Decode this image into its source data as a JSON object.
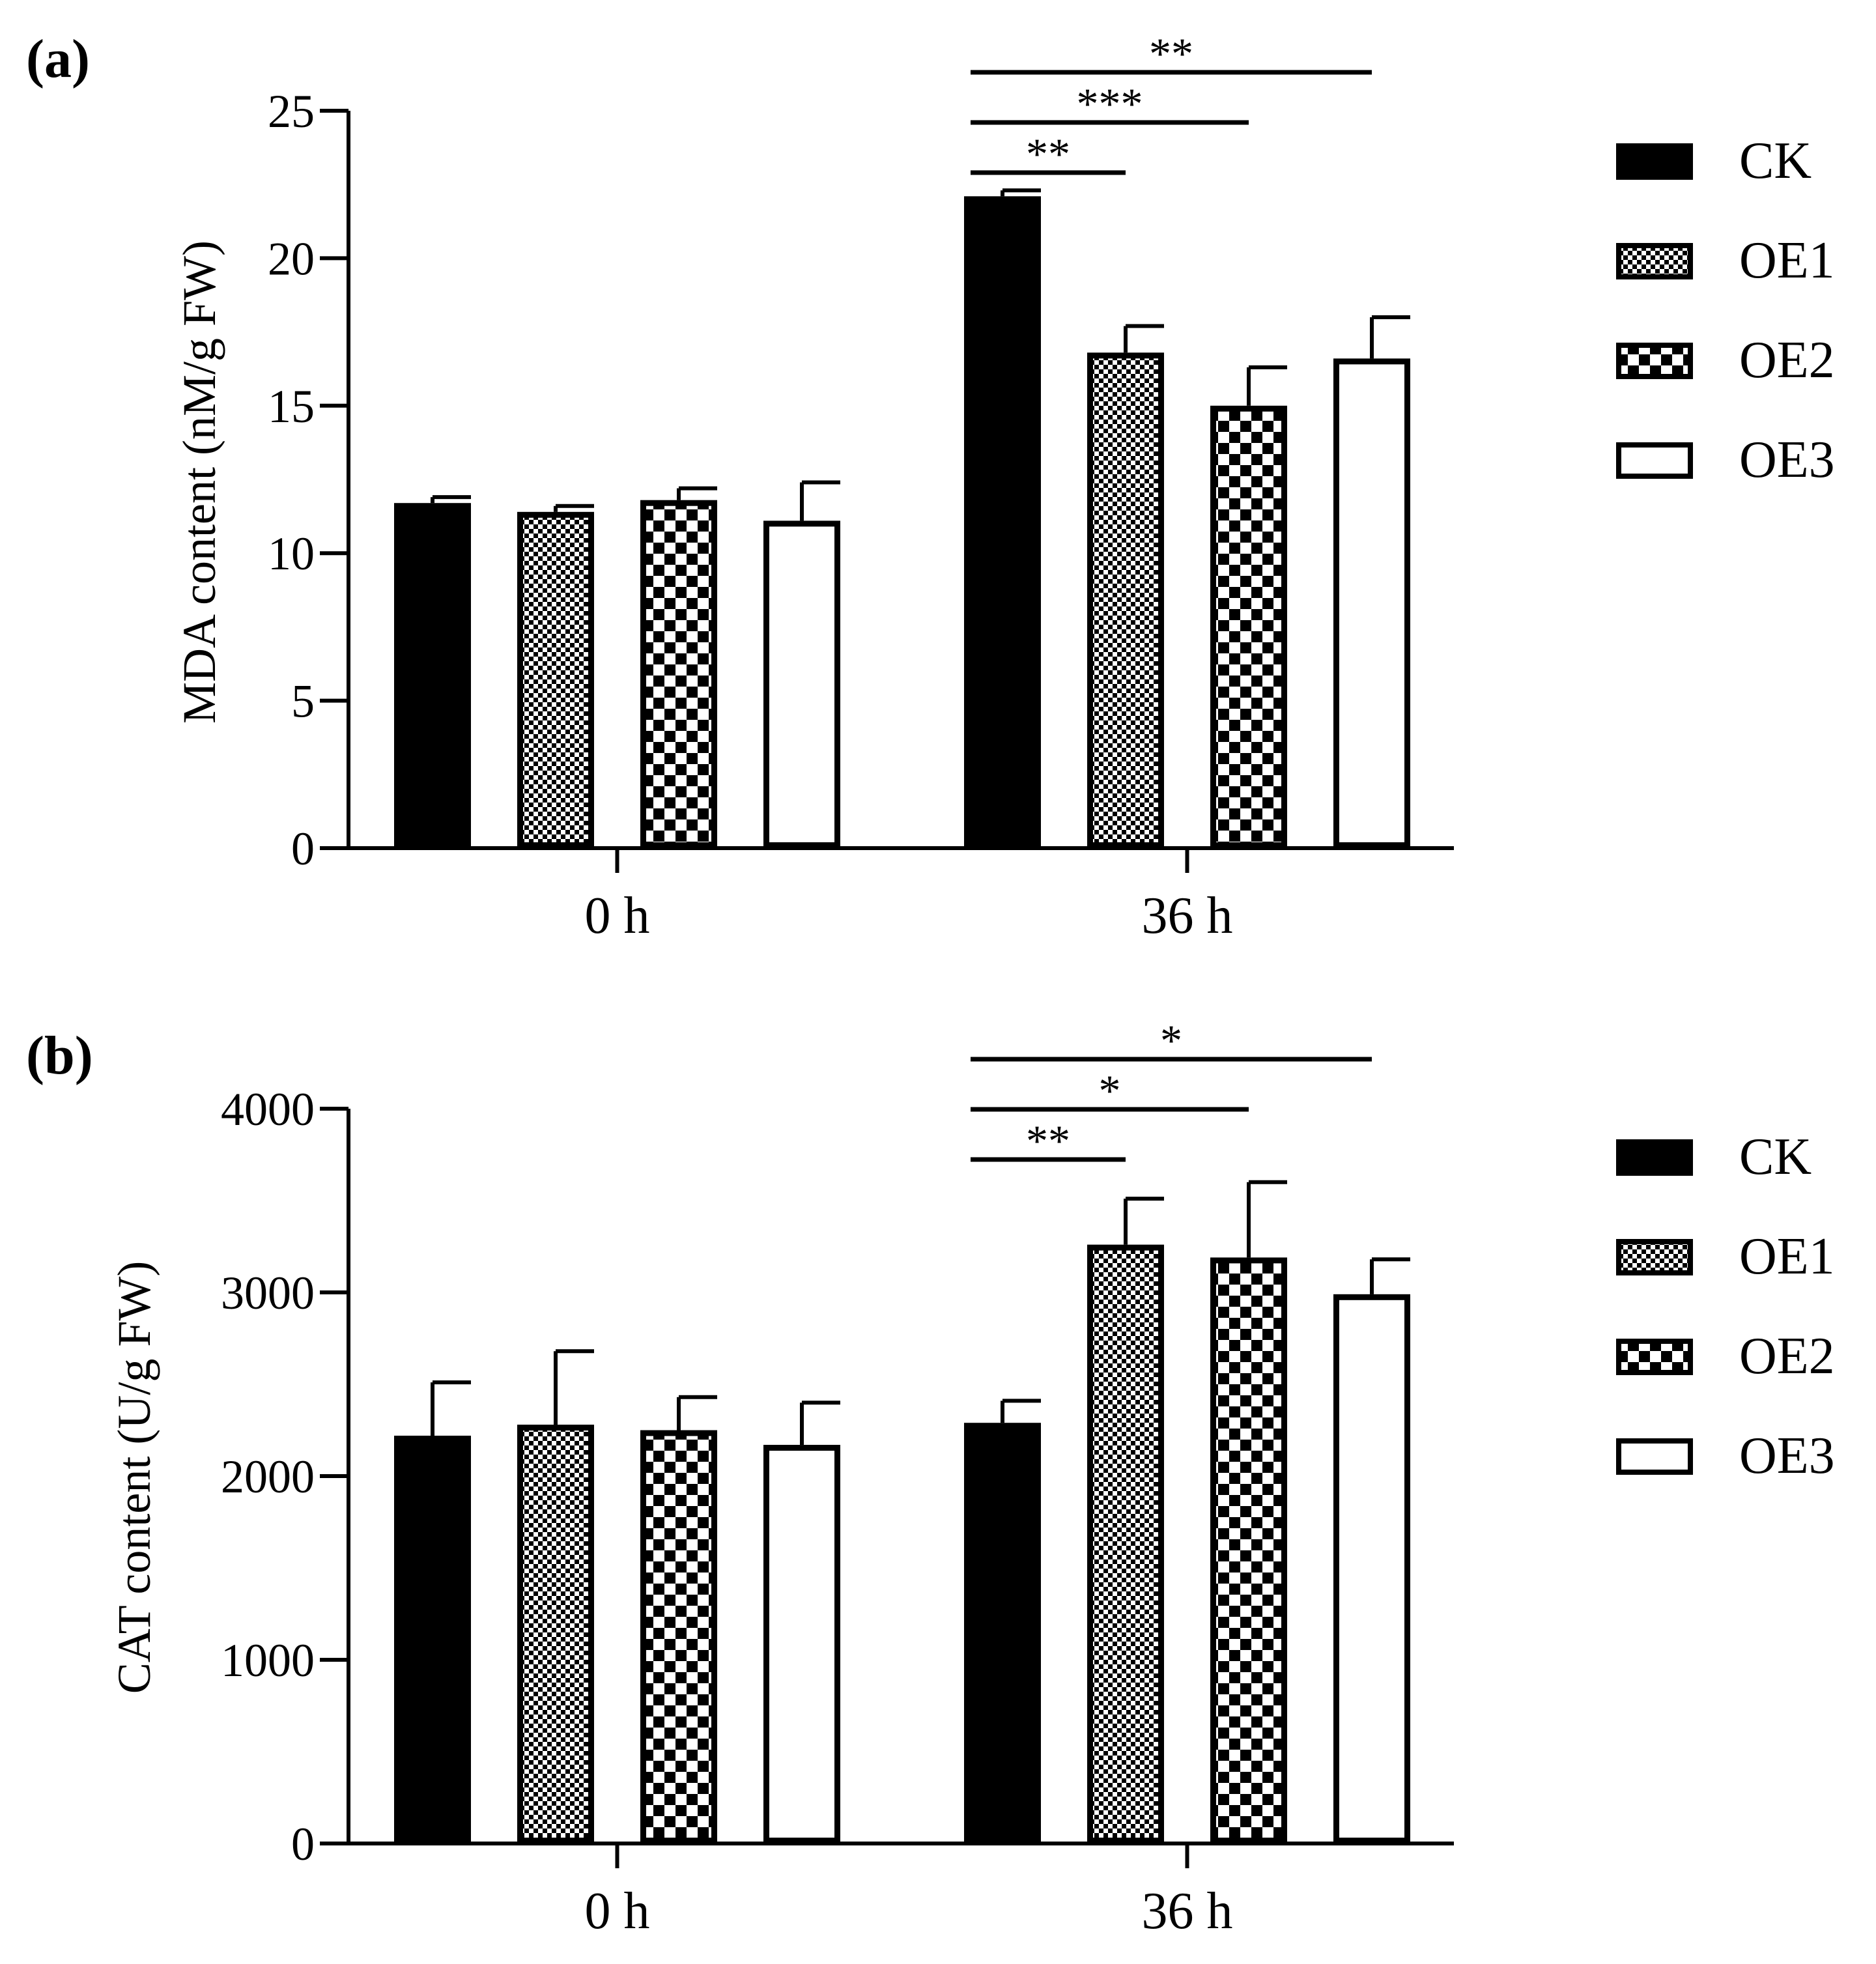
{
  "figure": {
    "panel_labels": [
      "(a)",
      "(b)"
    ],
    "legend_items": [
      "CK",
      "OE1",
      "OE2",
      "OE3"
    ]
  },
  "chart_data": [
    {
      "type": "bar",
      "panel_label": "(a)",
      "title": "",
      "xlabel": "",
      "ylabel": "MDA content (nM/g FW)",
      "ylim": [
        0,
        25
      ],
      "yticks": [
        0,
        5,
        10,
        15,
        20,
        25
      ],
      "ytick_labels": [
        "0",
        "5",
        "10",
        "15",
        "20",
        "25"
      ],
      "categories": [
        "0 h",
        "36 h"
      ],
      "series": [
        {
          "name": "CK",
          "pattern": "solid",
          "values": [
            11.7,
            22.1
          ],
          "errors": [
            0.2,
            0.2
          ]
        },
        {
          "name": "OE1",
          "pattern": "fine-check",
          "values": [
            11.4,
            16.8
          ],
          "errors": [
            0.2,
            0.9
          ]
        },
        {
          "name": "OE2",
          "pattern": "coarse-check",
          "values": [
            11.8,
            15.0
          ],
          "errors": [
            0.4,
            1.3
          ]
        },
        {
          "name": "OE3",
          "pattern": "white",
          "values": [
            11.1,
            16.6
          ],
          "errors": [
            1.3,
            1.4
          ]
        }
      ],
      "significance": [
        {
          "group": "36 h",
          "from": "CK",
          "to": "OE1",
          "label": "**"
        },
        {
          "group": "36 h",
          "from": "CK",
          "to": "OE2",
          "label": "***"
        },
        {
          "group": "36 h",
          "from": "CK",
          "to": "OE3",
          "label": "**"
        }
      ]
    },
    {
      "type": "bar",
      "panel_label": "(b)",
      "title": "",
      "xlabel": "",
      "ylabel": "CAT content (U/g FW)",
      "ylim": [
        0,
        4000
      ],
      "yticks": [
        0,
        1000,
        2000,
        3000,
        4000
      ],
      "ytick_labels": [
        "0",
        "1000",
        "2000",
        "3000",
        "4000"
      ],
      "categories": [
        "0 h",
        "36 h"
      ],
      "series": [
        {
          "name": "CK",
          "pattern": "solid",
          "values": [
            2220,
            2290
          ],
          "errors": [
            290,
            120
          ]
        },
        {
          "name": "OE1",
          "pattern": "fine-check",
          "values": [
            2280,
            3260
          ],
          "errors": [
            400,
            250
          ]
        },
        {
          "name": "OE2",
          "pattern": "coarse-check",
          "values": [
            2250,
            3190
          ],
          "errors": [
            180,
            410
          ]
        },
        {
          "name": "OE3",
          "pattern": "white",
          "values": [
            2170,
            2990
          ],
          "errors": [
            230,
            190
          ]
        }
      ],
      "significance": [
        {
          "group": "36 h",
          "from": "CK",
          "to": "OE1",
          "label": "**"
        },
        {
          "group": "36 h",
          "from": "CK",
          "to": "OE2",
          "label": "*"
        },
        {
          "group": "36 h",
          "from": "CK",
          "to": "OE3",
          "label": "*"
        }
      ]
    }
  ]
}
